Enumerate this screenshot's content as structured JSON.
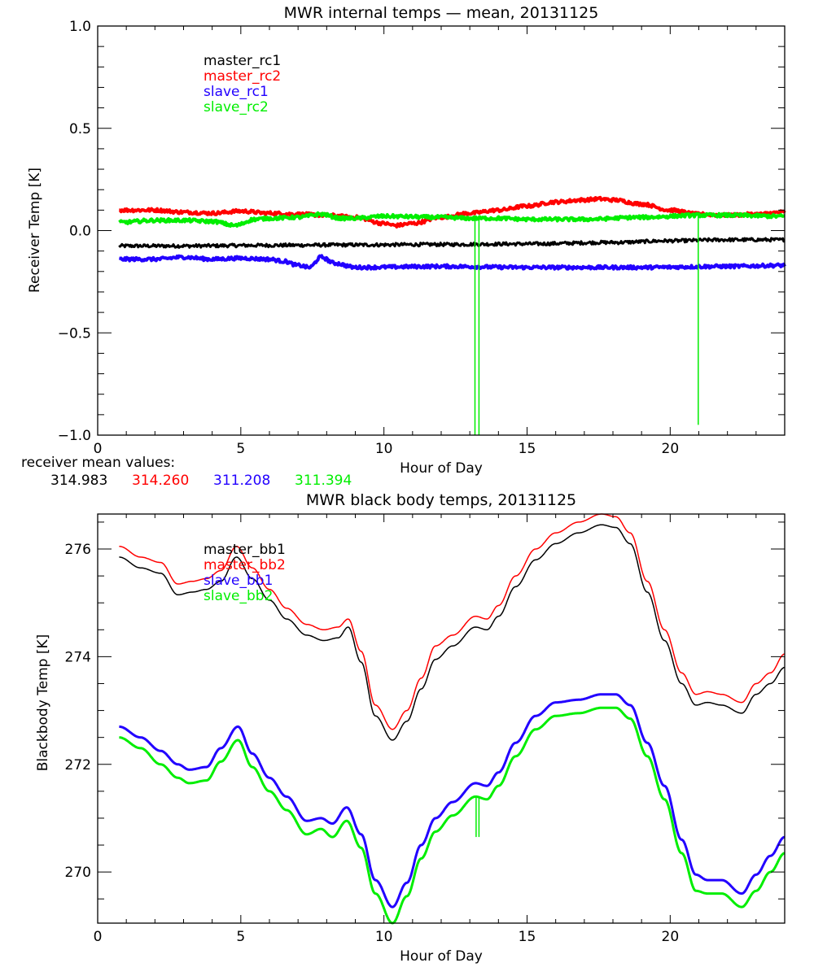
{
  "chart_data": [
    {
      "type": "line",
      "title": "MWR internal temps — mean, 20131125",
      "xlabel": "Hour of Day",
      "ylabel": "Receiver Temp [K]",
      "xlim": [
        0,
        24
      ],
      "ylim": [
        -1.0,
        1.0
      ],
      "xticks": [
        0,
        5,
        10,
        15,
        20
      ],
      "xtick_labels": [
        "0",
        "5",
        "10",
        "15",
        "20"
      ],
      "x_minor_step": 1,
      "yticks": [
        -1.0,
        -0.5,
        0.0,
        0.5,
        1.0
      ],
      "ytick_labels": [
        "−1.0",
        "−0.5",
        "0.0",
        "0.5",
        "1.0"
      ],
      "y_minor_step": 0.1,
      "grid": false,
      "legend_position": "top-left",
      "noise": 0.008,
      "series": [
        {
          "name": "master_rc1",
          "color": "#000000",
          "width": 3,
          "x": [
            0.75,
            3,
            6,
            9,
            12,
            15,
            18,
            20,
            22,
            24
          ],
          "y": [
            -0.075,
            -0.075,
            -0.072,
            -0.07,
            -0.068,
            -0.065,
            -0.058,
            -0.05,
            -0.045,
            -0.045
          ]
        },
        {
          "name": "master_rc2",
          "color": "#ff0000",
          "width": 4,
          "x": [
            0.75,
            2,
            3,
            4,
            5,
            6,
            7,
            8,
            9,
            10,
            10.4,
            11,
            12,
            13,
            14,
            15,
            16,
            17,
            17.5,
            18,
            19,
            20,
            21,
            22,
            23,
            24
          ],
          "y": [
            0.1,
            0.1,
            0.09,
            0.085,
            0.095,
            0.085,
            0.08,
            0.075,
            0.065,
            0.035,
            0.025,
            0.035,
            0.065,
            0.085,
            0.1,
            0.12,
            0.14,
            0.15,
            0.155,
            0.15,
            0.13,
            0.1,
            0.08,
            0.075,
            0.08,
            0.09
          ]
        },
        {
          "name": "slave_rc1",
          "color": "#2200ff",
          "width": 4,
          "x": [
            0.75,
            2,
            3,
            4,
            5,
            6,
            6.5,
            7,
            7.4,
            7.8,
            8.3,
            9,
            12,
            15,
            17,
            19,
            22,
            24
          ],
          "y": [
            -0.14,
            -0.14,
            -0.13,
            -0.14,
            -0.135,
            -0.14,
            -0.15,
            -0.17,
            -0.18,
            -0.13,
            -0.16,
            -0.18,
            -0.175,
            -0.18,
            -0.18,
            -0.18,
            -0.175,
            -0.17
          ]
        },
        {
          "name": "slave_rc2",
          "color": "#00ee00",
          "width": 4,
          "x": [
            0.75,
            2,
            3,
            4,
            4.8,
            5.5,
            6,
            7,
            7.8,
            8.5,
            9,
            10,
            12,
            13,
            14,
            15,
            17,
            19,
            21,
            22,
            24
          ],
          "y": [
            0.04,
            0.05,
            0.05,
            0.045,
            0.025,
            0.055,
            0.06,
            0.065,
            0.08,
            0.06,
            0.06,
            0.07,
            0.065,
            0.06,
            0.06,
            0.055,
            0.055,
            0.065,
            0.075,
            0.075,
            0.07
          ],
          "spikes": [
            {
              "x": 13.18,
              "to": -1.0
            },
            {
              "x": 13.32,
              "to": -1.0
            },
            {
              "x": 20.98,
              "to": -0.95
            }
          ]
        }
      ],
      "annotation": {
        "label": "receiver mean values:",
        "values": [
          {
            "text": "314.983",
            "color": "#000000"
          },
          {
            "text": "314.260",
            "color": "#ff0000"
          },
          {
            "text": "311.208",
            "color": "#2200ff"
          },
          {
            "text": "311.394",
            "color": "#00ee00"
          }
        ]
      }
    },
    {
      "type": "line",
      "title": "MWR black body temps, 20131125",
      "xlabel": "Hour of Day",
      "ylabel": "Blackbody Temp [K]",
      "xlim": [
        0,
        24
      ],
      "ylim": [
        269.05,
        276.65
      ],
      "xticks": [
        0,
        5,
        10,
        15,
        20
      ],
      "xtick_labels": [
        "0",
        "5",
        "10",
        "15",
        "20"
      ],
      "x_minor_step": 1,
      "yticks": [
        270,
        272,
        274,
        276
      ],
      "ytick_labels": [
        "270",
        "272",
        "274",
        "276"
      ],
      "y_minor_step": 0.5,
      "grid": false,
      "legend_position": "top-left",
      "noise": 0,
      "series": [
        {
          "name": "master_bb1",
          "color": "#000000",
          "width": 1.5,
          "x": [
            0.75,
            1.5,
            2.2,
            2.8,
            3.3,
            3.8,
            4.3,
            4.85,
            5.4,
            6.0,
            6.6,
            7.3,
            7.9,
            8.4,
            8.75,
            9.2,
            9.7,
            10.3,
            10.8,
            11.3,
            11.8,
            12.4,
            13.2,
            13.6,
            14.0,
            14.6,
            15.3,
            16.0,
            16.8,
            17.6,
            18.1,
            18.6,
            19.2,
            19.8,
            20.4,
            20.9,
            21.3,
            21.8,
            22.5,
            23.0,
            23.5,
            24.0
          ],
          "y": [
            275.85,
            275.65,
            275.55,
            275.15,
            275.2,
            275.25,
            275.4,
            275.85,
            275.45,
            275.05,
            274.7,
            274.4,
            274.3,
            274.35,
            274.55,
            273.9,
            272.9,
            272.45,
            272.8,
            273.4,
            273.95,
            274.2,
            274.55,
            274.5,
            274.75,
            275.3,
            275.8,
            276.1,
            276.3,
            276.45,
            276.4,
            276.1,
            275.2,
            274.3,
            273.5,
            273.1,
            273.15,
            273.1,
            272.95,
            273.3,
            273.5,
            273.8
          ]
        },
        {
          "name": "master_bb2",
          "color": "#ff0000",
          "width": 1.5,
          "x": [
            0.75,
            1.5,
            2.2,
            2.8,
            3.3,
            3.8,
            4.3,
            4.85,
            5.4,
            6.0,
            6.6,
            7.3,
            7.9,
            8.4,
            8.75,
            9.2,
            9.7,
            10.3,
            10.8,
            11.3,
            11.8,
            12.4,
            13.2,
            13.6,
            14.0,
            14.6,
            15.3,
            16.0,
            16.8,
            17.6,
            18.1,
            18.6,
            19.2,
            19.8,
            20.4,
            20.9,
            21.3,
            21.8,
            22.5,
            23.0,
            23.5,
            24.0
          ],
          "y": [
            276.05,
            275.85,
            275.75,
            275.35,
            275.4,
            275.45,
            275.6,
            276.05,
            275.65,
            275.25,
            274.9,
            274.6,
            274.5,
            274.55,
            274.7,
            274.1,
            273.1,
            272.65,
            273.0,
            273.6,
            274.2,
            274.4,
            274.75,
            274.7,
            274.95,
            275.5,
            276.0,
            276.3,
            276.5,
            276.65,
            276.6,
            276.3,
            275.4,
            274.5,
            273.7,
            273.3,
            273.35,
            273.3,
            273.15,
            273.5,
            273.7,
            274.05
          ]
        },
        {
          "name": "slave_bb1",
          "color": "#2200ff",
          "width": 3,
          "x": [
            0.75,
            1.5,
            2.2,
            2.8,
            3.2,
            3.8,
            4.3,
            4.9,
            5.4,
            6.0,
            6.6,
            7.3,
            7.8,
            8.2,
            8.7,
            9.2,
            9.7,
            10.3,
            10.8,
            11.3,
            11.8,
            12.4,
            13.2,
            13.6,
            14.0,
            14.6,
            15.3,
            16.0,
            16.8,
            17.6,
            18.1,
            18.6,
            19.2,
            19.8,
            20.4,
            20.9,
            21.3,
            21.8,
            22.5,
            23.0,
            23.5,
            24.0
          ],
          "y": [
            272.7,
            272.5,
            272.25,
            272.0,
            271.9,
            271.95,
            272.3,
            272.7,
            272.2,
            271.75,
            271.4,
            270.95,
            271.0,
            270.9,
            271.2,
            270.7,
            269.85,
            269.35,
            269.8,
            270.5,
            271.0,
            271.3,
            271.65,
            271.6,
            271.85,
            272.4,
            272.9,
            273.15,
            273.2,
            273.3,
            273.3,
            273.1,
            272.4,
            271.6,
            270.6,
            269.95,
            269.85,
            269.85,
            269.6,
            269.95,
            270.3,
            270.65
          ]
        },
        {
          "name": "slave_bb2",
          "color": "#00ee00",
          "width": 3,
          "x": [
            0.75,
            1.5,
            2.2,
            2.8,
            3.2,
            3.8,
            4.3,
            4.9,
            5.4,
            6.0,
            6.6,
            7.3,
            7.8,
            8.2,
            8.7,
            9.2,
            9.7,
            10.3,
            10.8,
            11.3,
            11.8,
            12.4,
            13.2,
            13.6,
            14.0,
            14.6,
            15.3,
            16.0,
            16.8,
            17.6,
            18.1,
            18.6,
            19.2,
            19.8,
            20.4,
            20.9,
            21.3,
            21.8,
            22.5,
            23.0,
            23.5,
            24.0
          ],
          "y": [
            272.5,
            272.3,
            272.0,
            271.75,
            271.65,
            271.7,
            272.05,
            272.45,
            271.95,
            271.5,
            271.15,
            270.7,
            270.8,
            270.65,
            270.95,
            270.45,
            269.6,
            269.05,
            269.55,
            270.25,
            270.75,
            271.05,
            271.4,
            271.35,
            271.6,
            272.15,
            272.65,
            272.9,
            272.95,
            273.05,
            273.05,
            272.85,
            272.15,
            271.35,
            270.35,
            269.65,
            269.6,
            269.6,
            269.35,
            269.65,
            270.0,
            270.35
          ],
          "spikes": [
            {
              "x": 13.22,
              "to": 270.65
            },
            {
              "x": 13.32,
              "to": 270.65
            }
          ]
        }
      ]
    }
  ]
}
